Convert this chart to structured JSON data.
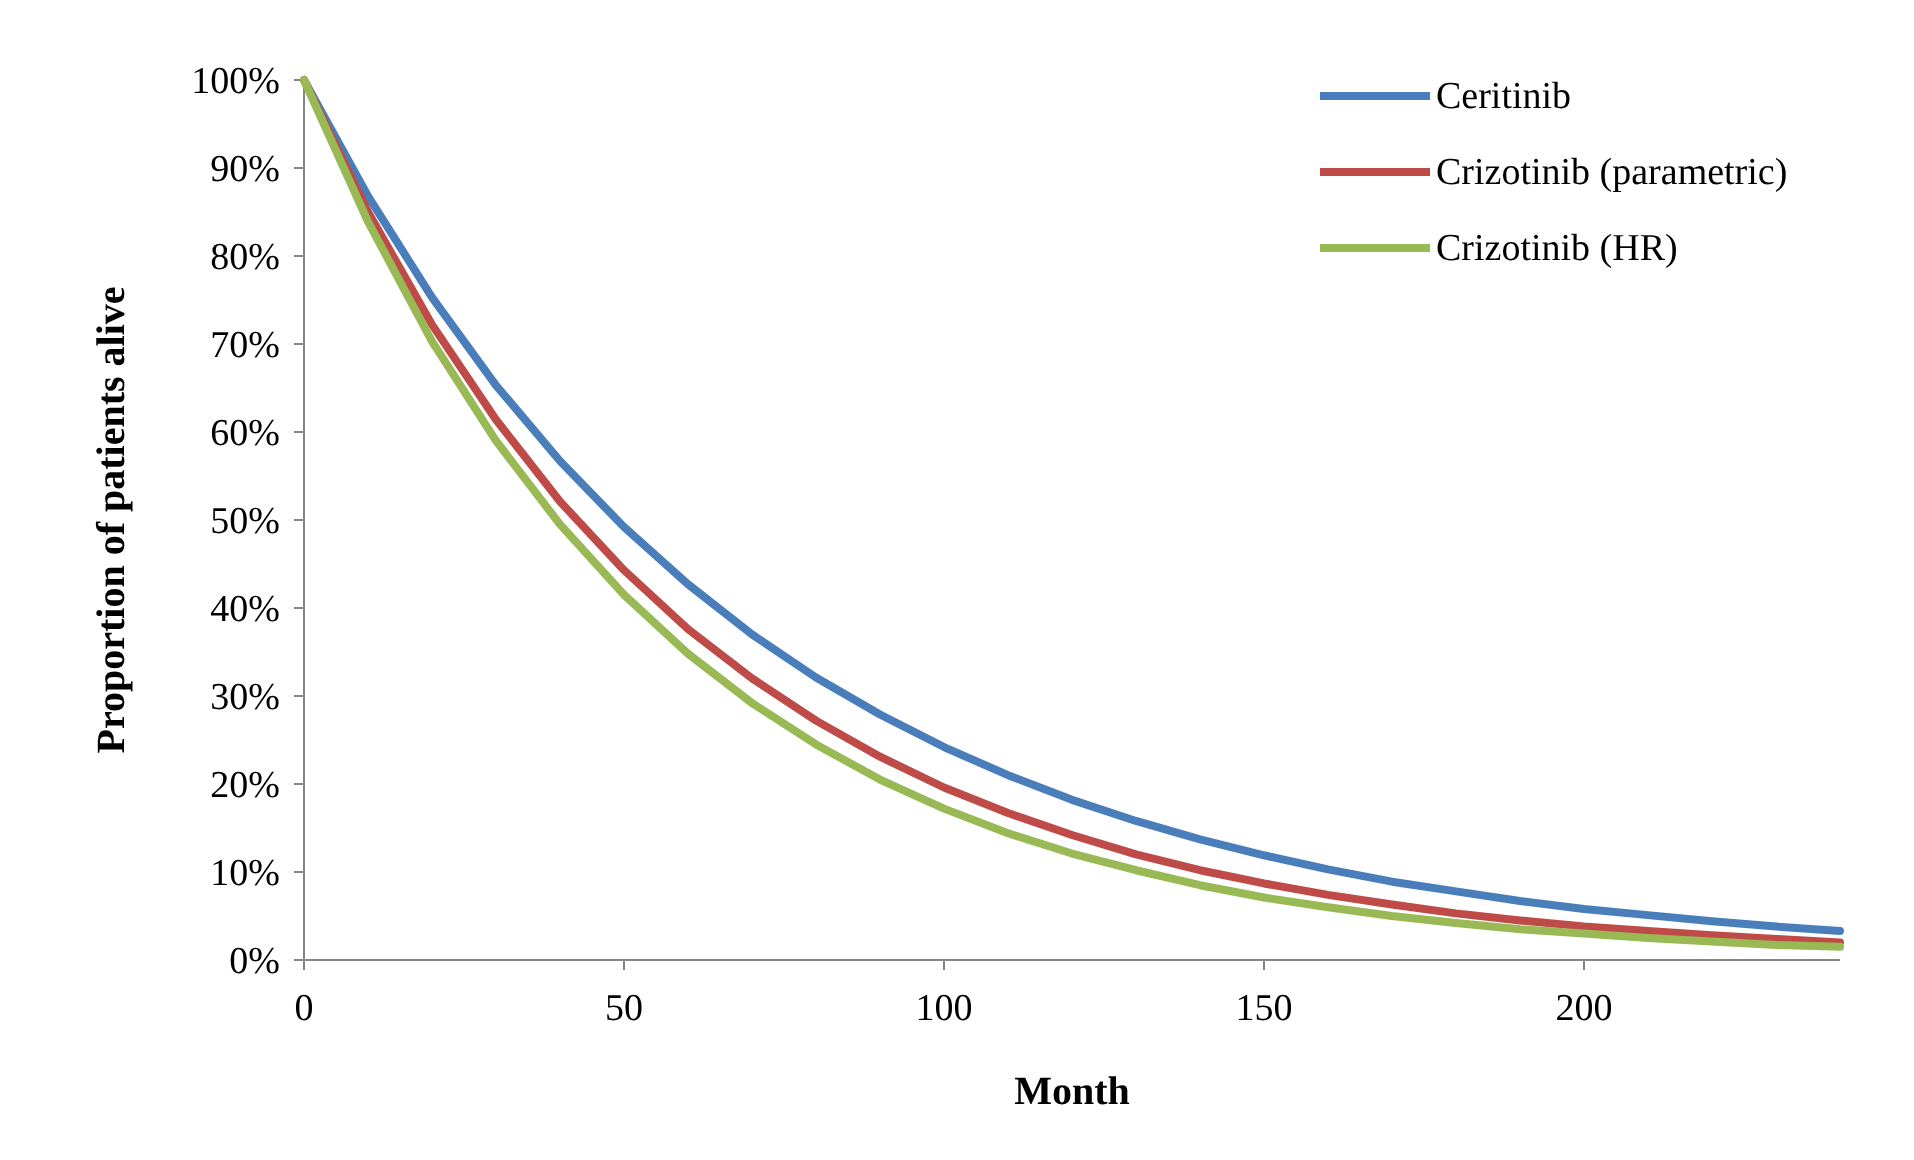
{
  "chart_data": {
    "type": "line",
    "xlabel": "Month",
    "ylabel": "Proportion of patients alive",
    "x": [
      0,
      10,
      20,
      30,
      40,
      50,
      60,
      70,
      80,
      90,
      100,
      110,
      120,
      130,
      140,
      150,
      160,
      170,
      180,
      190,
      200,
      210,
      220,
      230,
      240
    ],
    "series": [
      {
        "name": "Ceritinib",
        "color": "#4a7ebb",
        "values": [
          100,
          86.8,
          75.3,
          65.3,
          56.7,
          49.2,
          42.7,
          37.0,
          32.1,
          27.9,
          24.2,
          21.0,
          18.2,
          15.8,
          13.7,
          11.9,
          10.3,
          8.9,
          7.8,
          6.7,
          5.8,
          5.1,
          4.4,
          3.8,
          3.3
        ]
      },
      {
        "name": "Crizotinib (parametric)",
        "color": "#be4b48",
        "values": [
          100,
          85.0,
          72.2,
          61.4,
          52.1,
          44.3,
          37.6,
          32.0,
          27.2,
          23.1,
          19.6,
          16.7,
          14.2,
          12.0,
          10.2,
          8.7,
          7.4,
          6.3,
          5.3,
          4.5,
          3.8,
          3.3,
          2.8,
          2.4,
          2.0
        ]
      },
      {
        "name": "Crizotinib (HR)",
        "color": "#98b954",
        "values": [
          100,
          83.9,
          70.3,
          59.0,
          49.5,
          41.5,
          34.8,
          29.2,
          24.5,
          20.5,
          17.2,
          14.4,
          12.1,
          10.2,
          8.5,
          7.1,
          6.0,
          5.0,
          4.2,
          3.5,
          3.0,
          2.5,
          2.1,
          1.7,
          1.5
        ]
      }
    ],
    "xlim": [
      0,
      240
    ],
    "xticks": [
      0,
      50,
      100,
      150,
      200
    ],
    "ylim": [
      0,
      100
    ],
    "yticks": [
      {
        "value": 0,
        "label": "0%"
      },
      {
        "value": 10,
        "label": "10%"
      },
      {
        "value": 20,
        "label": "20%"
      },
      {
        "value": 30,
        "label": "30%"
      },
      {
        "value": 40,
        "label": "40%"
      },
      {
        "value": 50,
        "label": "50%"
      },
      {
        "value": 60,
        "label": "60%"
      },
      {
        "value": 70,
        "label": "70%"
      },
      {
        "value": 80,
        "label": "80%"
      },
      {
        "value": 90,
        "label": "90%"
      },
      {
        "value": 100,
        "label": "100%"
      }
    ],
    "grid": false,
    "legend": "top right",
    "marker": "none",
    "line_style": "solid"
  }
}
